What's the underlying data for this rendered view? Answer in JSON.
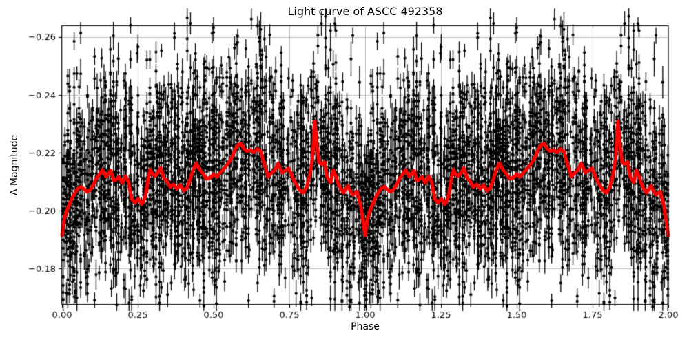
{
  "title": "Light curve of ASCC 492358",
  "chart_data": {
    "type": "scatter",
    "title": "Light curve of ASCC 492358",
    "xlabel": "Phase",
    "ylabel": "Δ Magnitude",
    "xlim": [
      0,
      2
    ],
    "ylim": [
      -0.1676,
      -0.2639
    ],
    "y_axis_inverted": true,
    "x_ticks": [
      0.0,
      0.25,
      0.5,
      0.75,
      1.0,
      1.25,
      1.5,
      1.75,
      2.0
    ],
    "y_ticks": [
      -0.26,
      -0.24,
      -0.22,
      -0.2,
      -0.18
    ],
    "grid": true,
    "grid_color": "#b0b0b0",
    "background_color": "#ffffff",
    "spine_color": "#000000",
    "n_cycles": 2,
    "layout": {
      "plot_left": 90,
      "plot_right": 970,
      "plot_top": 37.5,
      "plot_bottom": 442.5
    },
    "series": [
      {
        "name": "observations",
        "type": "errorbar_scatter",
        "color": "#000000",
        "marker_radius": 2.1,
        "errorbar_line_width": 1.3,
        "phase_folded_duplicate": true,
        "note": "Thousands of individual photometric points with error bars, clustered in vertical phase columns; scatter sigma about 0.012-0.022 mag around the smoothed curve. Reproduced procedurally from these parameters.",
        "simulation": {
          "seed": 20240613,
          "columns_per_cycle": 185,
          "points_min": 7,
          "points_max": 47,
          "column_sigma_mag_min": 0.012,
          "column_sigma_mag_max": 0.022,
          "column_center_jitter_mag": 0.0045,
          "errorbar_mag_base": 0.0022,
          "errorbar_mag_spread": 0.0016,
          "errorbar_mag_max": 0.008,
          "mag_clip_min": -0.2675,
          "mag_clip_max": -0.1665
        }
      },
      {
        "name": "smoothed_light_curve",
        "type": "line",
        "color": "#ff0000",
        "line_width": 5,
        "phase_folded_duplicate": true,
        "phase": [
          0.0,
          0.008,
          0.016,
          0.028,
          0.04,
          0.052,
          0.062,
          0.072,
          0.082,
          0.092,
          0.102,
          0.112,
          0.124,
          0.133,
          0.145,
          0.153,
          0.161,
          0.17,
          0.179,
          0.188,
          0.198,
          0.21,
          0.22,
          0.229,
          0.24,
          0.252,
          0.263,
          0.274,
          0.284,
          0.291,
          0.299,
          0.307,
          0.316,
          0.325,
          0.336,
          0.346,
          0.357,
          0.368,
          0.379,
          0.39,
          0.402,
          0.413,
          0.423,
          0.432,
          0.443,
          0.454,
          0.465,
          0.477,
          0.489,
          0.5,
          0.511,
          0.523,
          0.535,
          0.548,
          0.561,
          0.573,
          0.582,
          0.59,
          0.6,
          0.61,
          0.621,
          0.632,
          0.644,
          0.656,
          0.668,
          0.68,
          0.691,
          0.702,
          0.713,
          0.726,
          0.737,
          0.748,
          0.76,
          0.772,
          0.785,
          0.796,
          0.807,
          0.817,
          0.826,
          0.834,
          0.841,
          0.848,
          0.857,
          0.865,
          0.875,
          0.886,
          0.895,
          0.904,
          0.912,
          0.92,
          0.928,
          0.936,
          0.943,
          0.951,
          0.959,
          0.966,
          0.973,
          0.98,
          0.986,
          0.993,
          1.0
        ],
        "mag": [
          -0.1916,
          -0.1975,
          -0.2,
          -0.2032,
          -0.2058,
          -0.2076,
          -0.2083,
          -0.2075,
          -0.2066,
          -0.2071,
          -0.2086,
          -0.211,
          -0.2126,
          -0.2141,
          -0.2118,
          -0.2128,
          -0.2139,
          -0.2105,
          -0.2108,
          -0.2117,
          -0.2096,
          -0.2119,
          -0.2098,
          -0.2042,
          -0.2028,
          -0.2041,
          -0.2022,
          -0.2046,
          -0.211,
          -0.2142,
          -0.2126,
          -0.212,
          -0.213,
          -0.2148,
          -0.2114,
          -0.2102,
          -0.2082,
          -0.2091,
          -0.2076,
          -0.2088,
          -0.2069,
          -0.208,
          -0.211,
          -0.214,
          -0.2164,
          -0.2142,
          -0.2128,
          -0.211,
          -0.2115,
          -0.2126,
          -0.2117,
          -0.2133,
          -0.2146,
          -0.2163,
          -0.2186,
          -0.2216,
          -0.2228,
          -0.2232,
          -0.2215,
          -0.2205,
          -0.2211,
          -0.2201,
          -0.2214,
          -0.2204,
          -0.2158,
          -0.2118,
          -0.213,
          -0.2141,
          -0.2163,
          -0.2131,
          -0.214,
          -0.2146,
          -0.2116,
          -0.2091,
          -0.207,
          -0.2062,
          -0.2082,
          -0.2122,
          -0.218,
          -0.2309,
          -0.222,
          -0.2166,
          -0.216,
          -0.2169,
          -0.2116,
          -0.2097,
          -0.214,
          -0.2118,
          -0.209,
          -0.2075,
          -0.2062,
          -0.2075,
          -0.2086,
          -0.2068,
          -0.2055,
          -0.206,
          -0.2066,
          -0.204,
          -0.2012,
          -0.1962,
          -0.1915
        ]
      }
    ]
  }
}
